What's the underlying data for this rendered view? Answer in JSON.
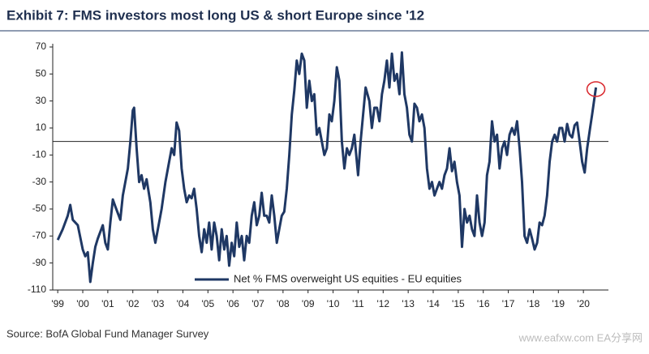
{
  "chart_data": {
    "type": "line",
    "title": "Exhibit 7: FMS investors most long US & short Europe since '12",
    "source": "Source: BofA Global Fund Manager Survey",
    "watermark": "www.eafxw.com  EA分享网",
    "x": [
      1999.0,
      1999.2,
      1999.4,
      1999.5,
      1999.6,
      1999.8,
      2000.0,
      2000.1,
      2000.2,
      2000.3,
      2000.4,
      2000.5,
      2000.6,
      2000.8,
      2000.9,
      2001.0,
      2001.1,
      2001.2,
      2001.3,
      2001.5,
      2001.6,
      2001.8,
      2001.9,
      2002.0,
      2002.05,
      2002.15,
      2002.25,
      2002.35,
      2002.45,
      2002.55,
      2002.7,
      2002.8,
      2002.9,
      2003.0,
      2003.15,
      2003.3,
      2003.45,
      2003.55,
      2003.65,
      2003.75,
      2003.85,
      2003.95,
      2004.05,
      2004.15,
      2004.25,
      2004.35,
      2004.45,
      2004.55,
      2004.65,
      2004.75,
      2004.85,
      2004.95,
      2005.05,
      2005.15,
      2005.25,
      2005.35,
      2005.45,
      2005.55,
      2005.65,
      2005.75,
      2005.85,
      2005.95,
      2006.05,
      2006.15,
      2006.25,
      2006.35,
      2006.45,
      2006.55,
      2006.65,
      2006.75,
      2006.85,
      2006.95,
      2007.05,
      2007.15,
      2007.25,
      2007.35,
      2007.45,
      2007.55,
      2007.65,
      2007.75,
      2007.85,
      2007.95,
      2008.05,
      2008.15,
      2008.25,
      2008.35,
      2008.45,
      2008.55,
      2008.65,
      2008.75,
      2008.85,
      2008.95,
      2009.05,
      2009.15,
      2009.25,
      2009.35,
      2009.45,
      2009.55,
      2009.65,
      2009.75,
      2009.85,
      2009.95,
      2010.05,
      2010.15,
      2010.25,
      2010.35,
      2010.45,
      2010.55,
      2010.65,
      2010.75,
      2010.85,
      2011.0,
      2011.1,
      2011.2,
      2011.3,
      2011.45,
      2011.55,
      2011.65,
      2011.75,
      2011.85,
      2011.95,
      2012.05,
      2012.15,
      2012.25,
      2012.35,
      2012.45,
      2012.55,
      2012.65,
      2012.75,
      2012.85,
      2012.95,
      2013.05,
      2013.15,
      2013.25,
      2013.35,
      2013.45,
      2013.55,
      2013.65,
      2013.75,
      2013.85,
      2013.95,
      2014.05,
      2014.15,
      2014.25,
      2014.35,
      2014.45,
      2014.55,
      2014.65,
      2014.75,
      2014.85,
      2014.95,
      2015.05,
      2015.15,
      2015.25,
      2015.35,
      2015.45,
      2015.55,
      2015.65,
      2015.75,
      2015.85,
      2015.95,
      2016.05,
      2016.15,
      2016.25,
      2016.35,
      2016.45,
      2016.55,
      2016.65,
      2016.75,
      2016.85,
      2016.95,
      2017.05,
      2017.15,
      2017.25,
      2017.35,
      2017.45,
      2017.55,
      2017.65,
      2017.75,
      2017.85,
      2017.95,
      2018.05,
      2018.15,
      2018.25,
      2018.35,
      2018.45,
      2018.55,
      2018.65,
      2018.75,
      2018.85,
      2018.95,
      2019.05,
      2019.15,
      2019.25,
      2019.35,
      2019.45,
      2019.55,
      2019.65,
      2019.75,
      2019.85,
      2019.95,
      2020.05,
      2020.15,
      2020.25,
      2020.35,
      2020.5
    ],
    "series": [
      {
        "name": "Net % FMS overweight US equities - EU equities",
        "color": "#1f3864",
        "values": [
          -73,
          -65,
          -55,
          -47,
          -58,
          -62,
          -80,
          -85,
          -82,
          -104,
          -90,
          -78,
          -72,
          -62,
          -75,
          -80,
          -60,
          -43,
          -48,
          -58,
          -40,
          -20,
          0,
          23,
          25,
          -5,
          -30,
          -25,
          -35,
          -28,
          -45,
          -65,
          -75,
          -65,
          -50,
          -30,
          -15,
          -5,
          -10,
          14,
          8,
          -20,
          -35,
          -45,
          -40,
          -42,
          -35,
          -50,
          -70,
          -82,
          -65,
          -75,
          -60,
          -80,
          -60,
          -70,
          -88,
          -65,
          -80,
          -70,
          -92,
          -75,
          -85,
          -60,
          -78,
          -70,
          -88,
          -70,
          -75,
          -55,
          -45,
          -62,
          -55,
          -38,
          -55,
          -55,
          -60,
          -40,
          -55,
          -75,
          -65,
          -55,
          -52,
          -35,
          -10,
          20,
          38,
          60,
          50,
          65,
          60,
          25,
          45,
          30,
          35,
          5,
          10,
          0,
          -10,
          -5,
          20,
          15,
          30,
          55,
          45,
          0,
          -20,
          -5,
          -10,
          -5,
          5,
          -25,
          0,
          20,
          40,
          30,
          10,
          25,
          25,
          15,
          35,
          45,
          60,
          40,
          65,
          45,
          50,
          35,
          66,
          35,
          25,
          5,
          0,
          28,
          25,
          15,
          20,
          10,
          -20,
          -35,
          -30,
          -40,
          -35,
          -30,
          -35,
          -25,
          -20,
          -5,
          -22,
          -15,
          -30,
          -40,
          -78,
          -50,
          -60,
          -55,
          -65,
          -70,
          -40,
          -60,
          -70,
          -60,
          -25,
          -15,
          15,
          0,
          5,
          -20,
          -5,
          0,
          -10,
          5,
          10,
          5,
          15,
          -5,
          -30,
          -70,
          -75,
          -65,
          -72,
          -80,
          -75,
          -60,
          -62,
          -55,
          -40,
          -15,
          0,
          5,
          0,
          10,
          10,
          0,
          13,
          5,
          3,
          12,
          14,
          0,
          -15,
          -23,
          -5,
          8,
          20,
          40
        ]
      }
    ],
    "xlim": [
      1998.8,
      2021
    ],
    "xticks": [
      {
        "value": 1999,
        "label": "'99"
      },
      {
        "value": 2000,
        "label": "'00"
      },
      {
        "value": 2001,
        "label": "'01"
      },
      {
        "value": 2002,
        "label": "'02"
      },
      {
        "value": 2003,
        "label": "'03"
      },
      {
        "value": 2004,
        "label": "'04"
      },
      {
        "value": 2005,
        "label": "'05"
      },
      {
        "value": 2006,
        "label": "'06"
      },
      {
        "value": 2007,
        "label": "'07"
      },
      {
        "value": 2008,
        "label": "'08"
      },
      {
        "value": 2009,
        "label": "'09"
      },
      {
        "value": 2010,
        "label": "'10"
      },
      {
        "value": 2011,
        "label": "'11"
      },
      {
        "value": 2012,
        "label": "'12"
      },
      {
        "value": 2013,
        "label": "'13"
      },
      {
        "value": 2014,
        "label": "'14"
      },
      {
        "value": 2015,
        "label": "'15"
      },
      {
        "value": 2016,
        "label": "'16"
      },
      {
        "value": 2017,
        "label": "'17"
      },
      {
        "value": 2018,
        "label": "'18"
      },
      {
        "value": 2019,
        "label": "'19"
      },
      {
        "value": 2020,
        "label": "'20"
      }
    ],
    "ylim": [
      -110,
      70
    ],
    "yticks": [
      -110,
      -90,
      -70,
      -50,
      -30,
      -10,
      10,
      30,
      50,
      70
    ],
    "hline": 0,
    "highlight_color": "#d9262c",
    "grid": false
  }
}
